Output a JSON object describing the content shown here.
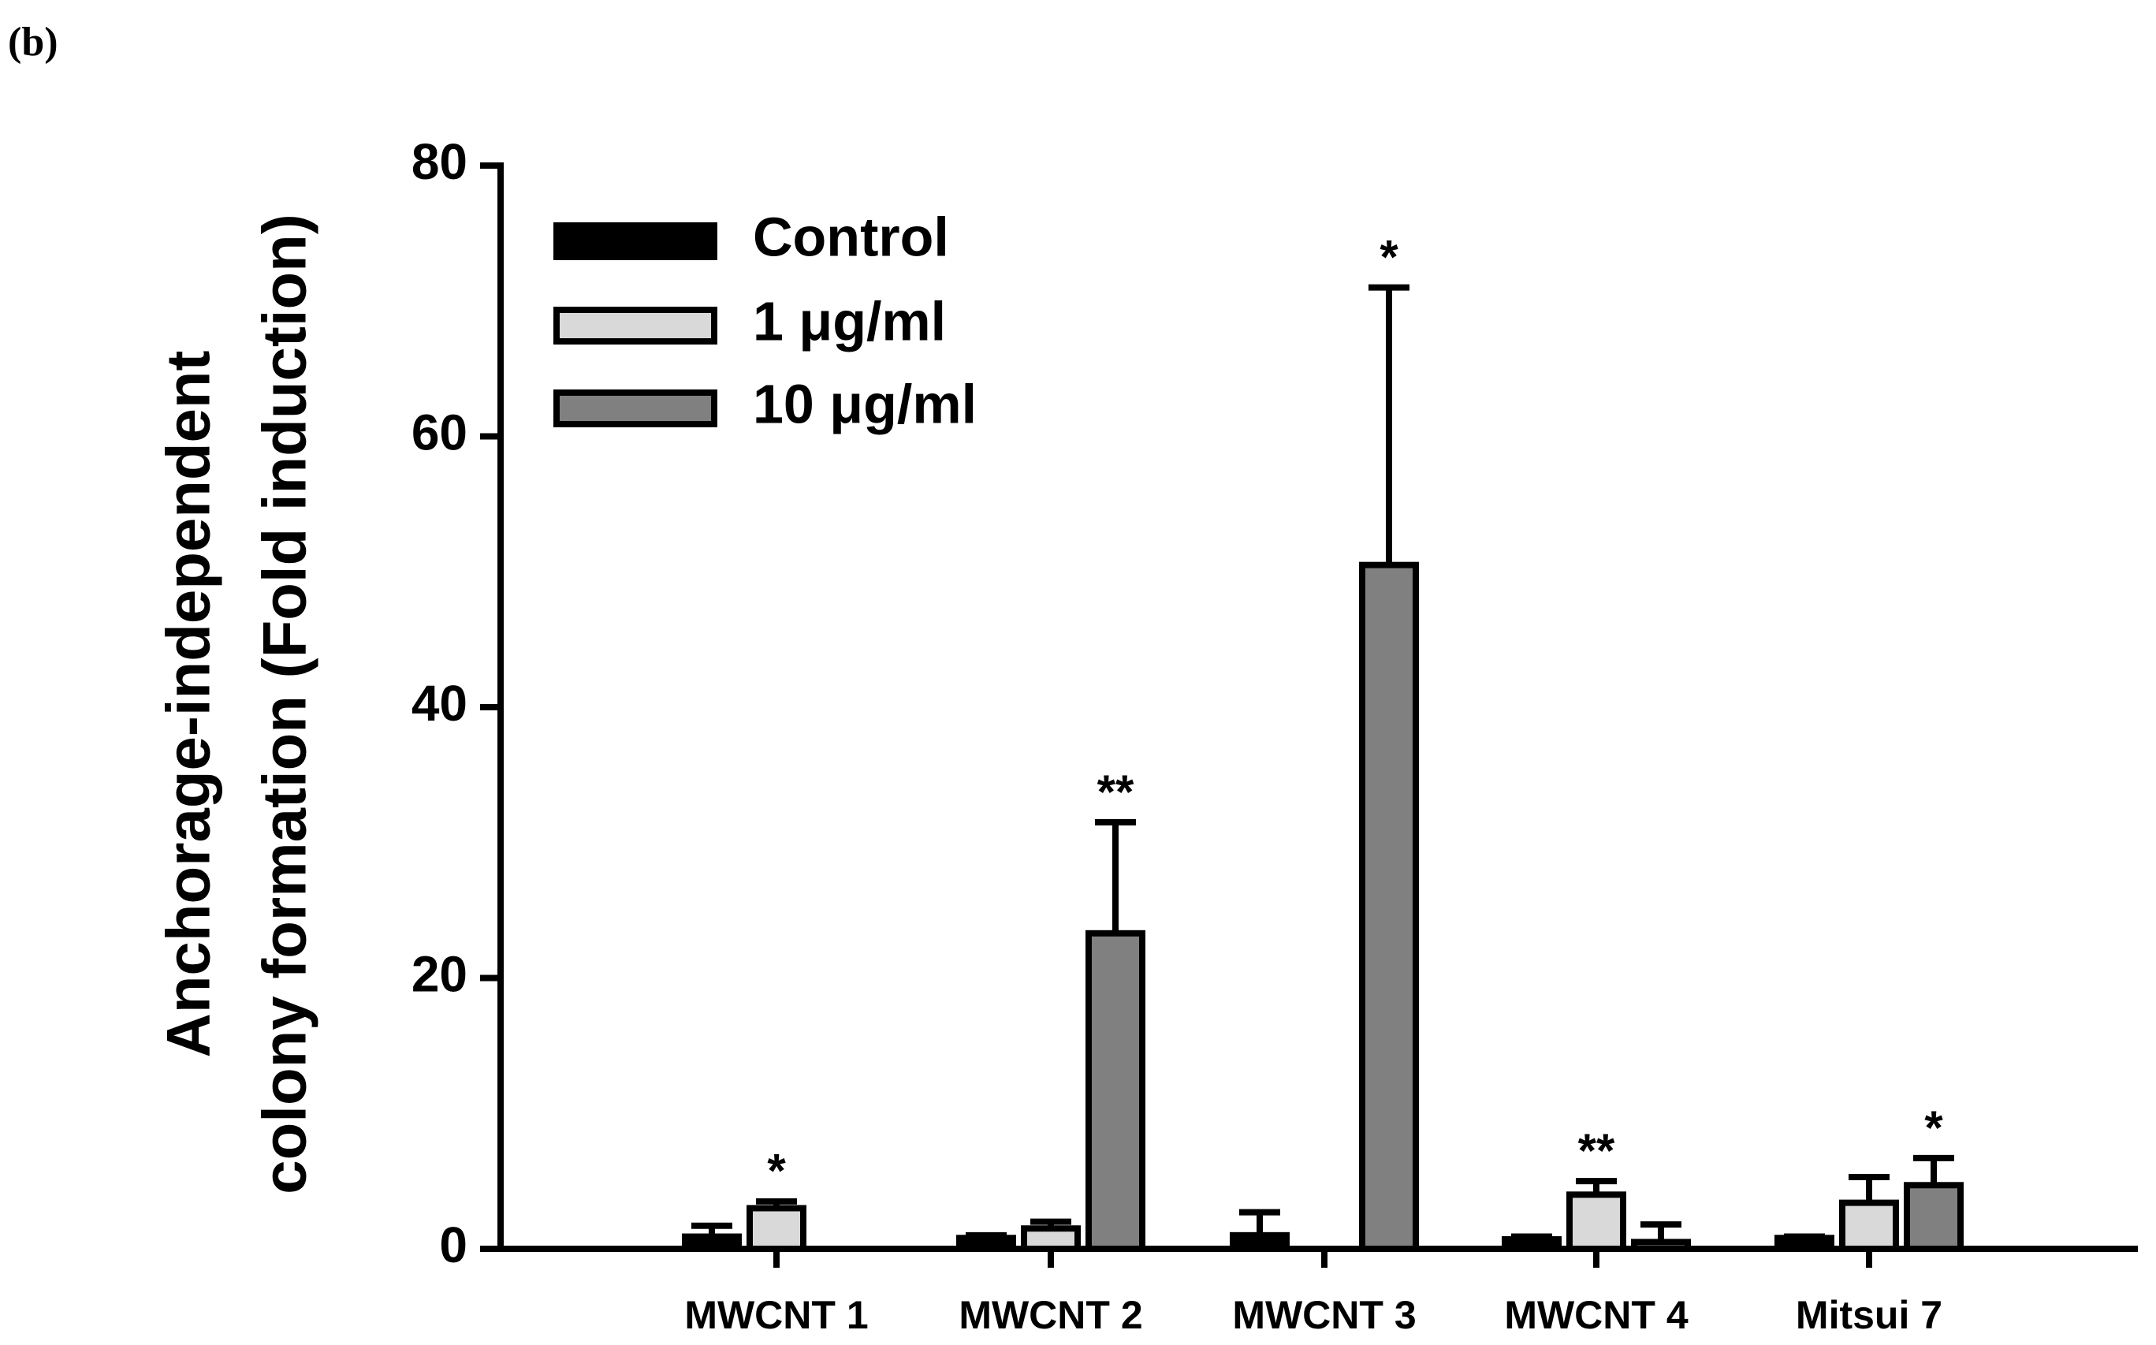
{
  "chart_data": {
    "type": "bar",
    "panel_label": "(b)",
    "ylabel": [
      "Anchorage-independent",
      "colony formation (Fold induction)"
    ],
    "categories": [
      "MWCNT 1",
      "MWCNT 2",
      "MWCNT 3",
      "MWCNT 4",
      "Mitsui 7"
    ],
    "series": [
      {
        "name": "Control",
        "color": "#000000",
        "values": [
          0.9,
          0.8,
          1.0,
          0.7,
          0.8
        ],
        "errors": [
          0.8,
          0.2,
          1.7,
          0.2,
          0.1
        ],
        "annotations": [
          null,
          null,
          null,
          null,
          null
        ]
      },
      {
        "name": "1 μg/ml",
        "color": "#d9d9d9",
        "values": [
          3.0,
          1.5,
          null,
          4.0,
          3.4
        ],
        "errors": [
          0.5,
          0.5,
          null,
          1.0,
          1.9
        ],
        "annotations": [
          "*",
          null,
          null,
          "**",
          null
        ]
      },
      {
        "name": "10 μg/ml",
        "color": "#808080",
        "values": [
          null,
          23.3,
          50.5,
          0.5,
          4.7
        ],
        "errors": [
          null,
          8.2,
          20.5,
          1.3,
          2.0
        ],
        "annotations": [
          null,
          "**",
          "*",
          null,
          "*"
        ]
      }
    ],
    "ylim": [
      0,
      80
    ],
    "yticks": [
      0,
      20,
      40,
      60,
      80
    ]
  }
}
